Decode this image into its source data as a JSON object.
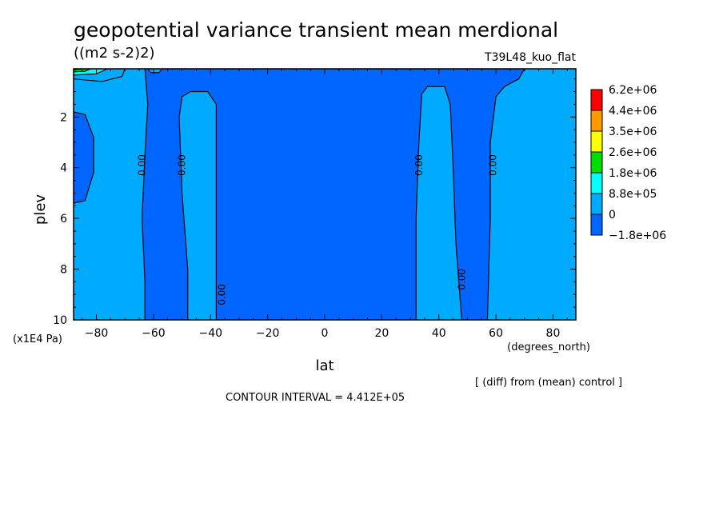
{
  "chart_data": {
    "type": "contour",
    "title": "geopotential variance transient mean merdional",
    "units": "((m2 s-2)2)",
    "run_label": "T39L48_kuo_flat",
    "xlabel": "lat",
    "x_units": "(degrees_north)",
    "ylabel": "plev",
    "y_units": "(x1E4 Pa)",
    "xlim": [
      -88,
      88
    ],
    "ylim": [
      10,
      0.1
    ],
    "x_ticks": [
      -80,
      -60,
      -40,
      -20,
      0,
      20,
      40,
      60,
      80
    ],
    "x_tick_labels": [
      "−80",
      "−60",
      "−40",
      "−20",
      "0",
      "20",
      "40",
      "60",
      "80"
    ],
    "y_ticks": [
      2,
      4,
      6,
      8,
      10
    ],
    "y_tick_labels": [
      "2",
      "4",
      "6",
      "8",
      "10"
    ],
    "diff_note": "[ (diff) from (mean) control ]",
    "contour_interval": "CONTOUR INTERVAL = 4.412E+05",
    "legend": {
      "labels": [
        "6.2e+06",
        "4.4e+06",
        "3.5e+06",
        "2.6e+06",
        "1.8e+06",
        "8.8e+05",
        "0",
        "−1.8e+06"
      ],
      "colors": [
        "#ff0000",
        "#ff9900",
        "#ffff00",
        "#00dd00",
        "#00ffff",
        "#00aaff",
        "#0066ff"
      ]
    },
    "contour_labels": [
      {
        "text": "0.00",
        "lat": -64,
        "plev": 3.9
      },
      {
        "text": "0.00",
        "lat": -50,
        "plev": 3.9
      },
      {
        "text": "0.00",
        "lat": -36,
        "plev": 9.0
      },
      {
        "text": "0.00",
        "lat": 33,
        "plev": 3.9
      },
      {
        "text": "0.00",
        "lat": 59,
        "plev": 3.9
      },
      {
        "text": "0.00",
        "lat": 48,
        "plev": 8.4
      }
    ],
    "regions": [
      {
        "name": "negative-region",
        "color": "#0066ff",
        "outline": [
          [
            -63,
            0.1
          ],
          [
            -62,
            1.5
          ],
          [
            -63,
            3.5
          ],
          [
            -64,
            6
          ],
          [
            -63,
            8.5
          ],
          [
            -63,
            10
          ],
          [
            -48,
            10
          ],
          [
            -48,
            8
          ],
          [
            -50,
            5
          ],
          [
            -51,
            2
          ],
          [
            -50,
            1.2
          ],
          [
            -47,
            1
          ],
          [
            -41,
            1
          ],
          [
            -38,
            1.5
          ],
          [
            -38,
            10
          ],
          [
            32,
            10
          ],
          [
            32,
            6
          ],
          [
            33,
            3
          ],
          [
            34,
            1.1
          ],
          [
            36,
            0.8
          ],
          [
            42,
            0.8
          ],
          [
            44,
            1.5
          ],
          [
            45,
            4
          ],
          [
            46,
            7
          ],
          [
            47,
            8.5
          ],
          [
            48,
            10
          ],
          [
            57,
            10
          ],
          [
            58,
            6
          ],
          [
            58,
            3
          ],
          [
            60,
            1.2
          ],
          [
            63,
            0.8
          ],
          [
            68,
            0.5
          ],
          [
            70,
            0.1
          ]
        ]
      },
      {
        "name": "negative-pocket-south",
        "color": "#0066ff",
        "outline": [
          [
            -88,
            1.8
          ],
          [
            -84,
            1.9
          ],
          [
            -81,
            2.8
          ],
          [
            -81,
            4.2
          ],
          [
            -84,
            5.3
          ],
          [
            -88,
            5.4
          ]
        ]
      },
      {
        "name": "positive-cell-pole",
        "color": "#00aaff",
        "outline": [
          [
            -88,
            0.1
          ],
          [
            -70,
            0.1
          ],
          [
            -71,
            0.4
          ],
          [
            -78,
            0.6
          ],
          [
            -88,
            0.5
          ]
        ]
      },
      {
        "name": "positive-core-pole",
        "color": "#00ffff",
        "outline": [
          [
            -88,
            0.1
          ],
          [
            -76,
            0.1
          ],
          [
            -80,
            0.3
          ],
          [
            -88,
            0.35
          ]
        ]
      },
      {
        "name": "max-core-pole",
        "color": "#00dd00",
        "outline": [
          [
            -88,
            0.1
          ],
          [
            -82,
            0.1
          ],
          [
            -84,
            0.2
          ],
          [
            -88,
            0.22
          ]
        ]
      },
      {
        "name": "peak-core-pole",
        "color": "#000000",
        "outline": [
          [
            -88,
            0.1
          ],
          [
            -84,
            0.1
          ],
          [
            -88,
            0.14
          ]
        ]
      },
      {
        "name": "small-positive-patch",
        "color": "#00aaff",
        "outline": [
          [
            -62,
            0.1
          ],
          [
            -57,
            0.1
          ],
          [
            -58,
            0.25
          ],
          [
            -61,
            0.25
          ]
        ]
      }
    ]
  }
}
